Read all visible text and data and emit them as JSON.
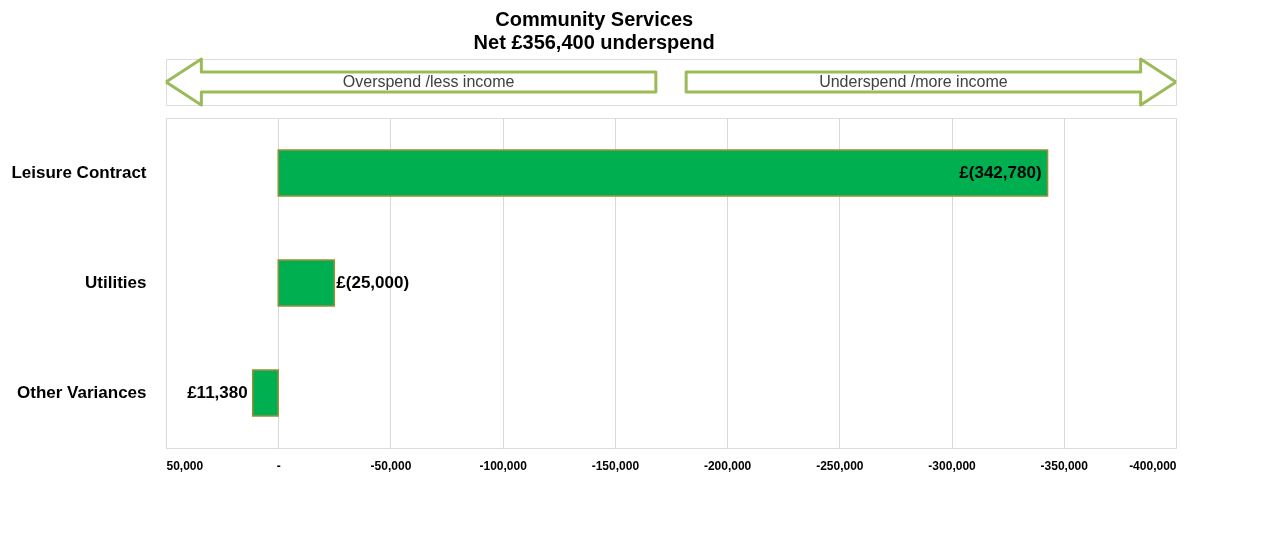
{
  "chart_data": {
    "type": "bar",
    "orientation": "horizontal",
    "title": "Community Services",
    "subtitle": "Net £356,400 underspend",
    "categories": [
      "Leisure Contract",
      "Utilities",
      "Other  Variances"
    ],
    "values": [
      -342780,
      -25000,
      11380
    ],
    "value_labels": [
      "£(342,780)",
      "£(25,000)",
      "£11,380"
    ],
    "color": "#00b050",
    "xlim": [
      50000,
      -400000
    ],
    "xticks": [
      {
        "value": 50000,
        "label": "50,000"
      },
      {
        "value": 0,
        "label": "-"
      },
      {
        "value": -50000,
        "label": "-50,000"
      },
      {
        "value": -100000,
        "label": "-100,000"
      },
      {
        "value": -150000,
        "label": "-150,000"
      },
      {
        "value": -200000,
        "label": "-200,000"
      },
      {
        "value": -250000,
        "label": "-250,000"
      },
      {
        "value": -300000,
        "label": "-300,000"
      },
      {
        "value": -350000,
        "label": "-350,000"
      },
      {
        "value": -400000,
        "label": "-400,000"
      }
    ],
    "grid": "x",
    "annotations": [
      "Overspend /less income",
      "Underspend /more income"
    ]
  }
}
